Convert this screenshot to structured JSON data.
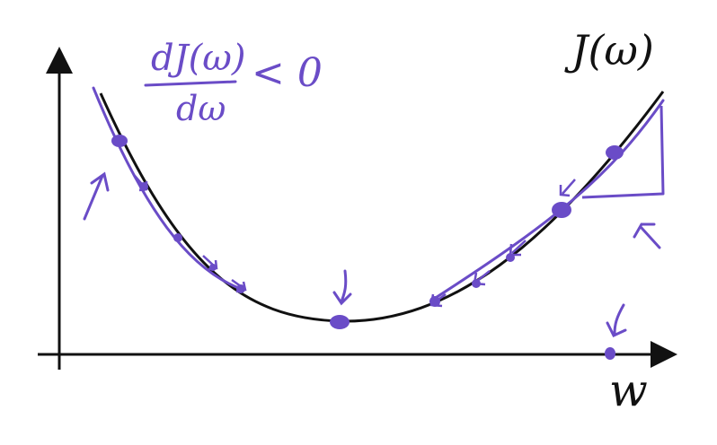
{
  "labels": {
    "function": "J(ω)",
    "x_axis": "w",
    "derivative_numerator": "dJ(ω)",
    "derivative_denominator": "dω",
    "derivative_relation": "< 0"
  },
  "colors": {
    "curve": "#111111",
    "axes": "#111111",
    "annotation": "#6a4cc7"
  }
}
